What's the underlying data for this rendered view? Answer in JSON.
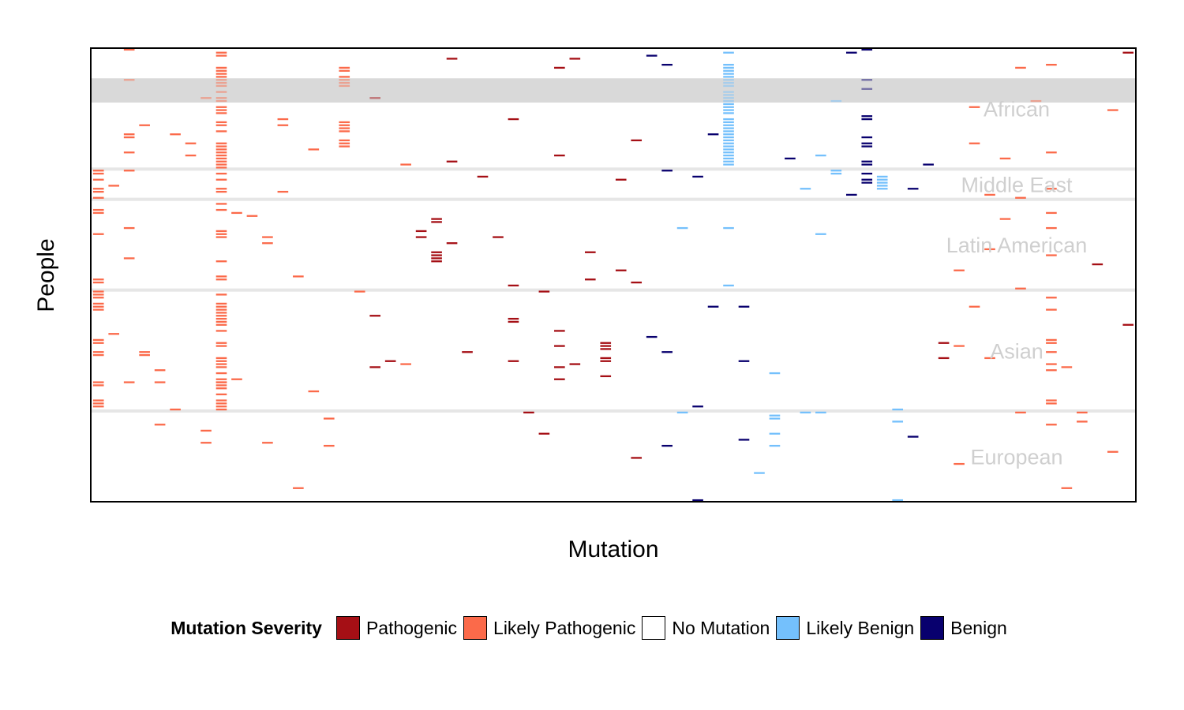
{
  "chart_data": {
    "type": "heatmap",
    "title": "",
    "xlabel": "Mutation",
    "ylabel": "People",
    "n_mutations": 68,
    "n_people": 150,
    "grid": false,
    "highlight_band_rows": [
      10,
      18
    ],
    "legend_title": "Mutation Severity",
    "legend_position": "bottom",
    "categories": [
      {
        "key": "P",
        "label": "Pathogenic",
        "color": "#A50F15"
      },
      {
        "key": "LP",
        "label": "Likely Pathogenic",
        "color": "#FB6A4A"
      },
      {
        "key": "N",
        "label": "No Mutation",
        "color": "#FFFFFF"
      },
      {
        "key": "LB",
        "label": "Likely Benign",
        "color": "#74C0FC"
      },
      {
        "key": "B",
        "label": "Benign",
        "color": "#08006E"
      }
    ],
    "groups": [
      {
        "name": "African",
        "row_start": 0,
        "row_end": 40
      },
      {
        "name": "Middle East",
        "row_start": 40,
        "row_end": 50
      },
      {
        "name": "Latin American",
        "row_start": 50,
        "row_end": 80
      },
      {
        "name": "Asian",
        "row_start": 80,
        "row_end": 120
      },
      {
        "name": "European",
        "row_start": 120,
        "row_end": 150
      }
    ],
    "cells": [
      {
        "col": 8,
        "rows": [
          1,
          2,
          6,
          7,
          8,
          9,
          10,
          11,
          12,
          14,
          16,
          17,
          19,
          20,
          21,
          24,
          25,
          27,
          31,
          32,
          33,
          34,
          35,
          36,
          37,
          38,
          39,
          41,
          43,
          46,
          47,
          51,
          53,
          60,
          61,
          62,
          70,
          75,
          76,
          81,
          84,
          85,
          86,
          87,
          88,
          89,
          90,
          91,
          93,
          97,
          98,
          102,
          103,
          104,
          105,
          107,
          109,
          110,
          110,
          111,
          112,
          114,
          116,
          117,
          118,
          119
        ],
        "sev": "LP"
      },
      {
        "col": 16,
        "rows": [
          6,
          7,
          9,
          10,
          11,
          12,
          24,
          25,
          26,
          27,
          30,
          31,
          32
        ],
        "sev": "LP"
      },
      {
        "col": 0,
        "rows": [
          40,
          41,
          43,
          46,
          47,
          49,
          53,
          54,
          61,
          76,
          77,
          80,
          81,
          82,
          84,
          85,
          86,
          96,
          97,
          100,
          101,
          110,
          111,
          116,
          117,
          118
        ],
        "sev": "LP"
      },
      {
        "col": 2,
        "rows": [
          0,
          10,
          28,
          29,
          34,
          40,
          59,
          69,
          110
        ],
        "sev": "LP"
      },
      {
        "col": 22,
        "rows": [
          56,
          57,
          67,
          68,
          69,
          70
        ],
        "sev": "P"
      },
      {
        "col": 33,
        "rows": [
          97,
          98,
          99,
          102,
          103,
          108
        ],
        "sev": "P"
      },
      {
        "col": 41,
        "rows": [
          1,
          5,
          6,
          7,
          8,
          9,
          10,
          11,
          12,
          14,
          15,
          16,
          17,
          18,
          19,
          20,
          21,
          23,
          24,
          25,
          26,
          27,
          28,
          29,
          30,
          31,
          32,
          33,
          34,
          35,
          36,
          37,
          38,
          59,
          78
        ],
        "sev": "LB"
      },
      {
        "col": 50,
        "rows": [
          0,
          10,
          13,
          22,
          23,
          29,
          31,
          32,
          37,
          38,
          41,
          43,
          44
        ],
        "sev": "B"
      },
      {
        "col": 48,
        "rows": [
          17,
          40,
          41
        ],
        "sev": "LB"
      },
      {
        "col": 51,
        "rows": [
          42,
          43,
          44,
          45,
          46
        ],
        "sev": "LB"
      },
      {
        "col": 62,
        "rows": [
          5,
          34,
          46,
          54,
          59,
          68,
          82,
          86,
          96,
          97,
          100,
          104,
          106,
          116,
          117,
          124
        ],
        "sev": "LP"
      },
      {
        "col": 60,
        "rows": [
          6,
          49,
          79,
          120
        ],
        "sev": "LP"
      },
      {
        "col": 30,
        "rows": [
          6,
          35,
          93,
          98,
          105,
          109
        ],
        "sev": "P"
      },
      {
        "col": 27,
        "rows": [
          23,
          78,
          89,
          90,
          103
        ],
        "sev": "P"
      },
      {
        "col": 44,
        "rows": [
          107,
          121,
          122,
          127,
          131
        ],
        "sev": "LB"
      },
      {
        "col": 37,
        "rows": [
          5,
          40,
          100,
          131
        ],
        "sev": "B"
      }
    ],
    "scattered_cells": [
      {
        "col": 1,
        "sev": "LP"
      },
      {
        "col": 3,
        "sev": "LP"
      },
      {
        "col": 4,
        "sev": "LP"
      },
      {
        "col": 5,
        "sev": "LP"
      },
      {
        "col": 6,
        "sev": "LP"
      },
      {
        "col": 7,
        "sev": "LP"
      },
      {
        "col": 9,
        "sev": "LP"
      },
      {
        "col": 10,
        "sev": "LP"
      },
      {
        "col": 11,
        "sev": "LP"
      },
      {
        "col": 12,
        "sev": "LP"
      },
      {
        "col": 13,
        "sev": "LP"
      },
      {
        "col": 14,
        "sev": "LP"
      },
      {
        "col": 15,
        "sev": "LP"
      },
      {
        "col": 17,
        "sev": "LP"
      },
      {
        "col": 18,
        "sev": "P"
      },
      {
        "col": 19,
        "sev": "P"
      },
      {
        "col": 20,
        "sev": "LP"
      },
      {
        "col": 21,
        "sev": "P"
      },
      {
        "col": 23,
        "sev": "P"
      },
      {
        "col": 24,
        "sev": "P"
      },
      {
        "col": 25,
        "sev": "P"
      },
      {
        "col": 26,
        "sev": "P"
      },
      {
        "col": 28,
        "sev": "P"
      },
      {
        "col": 29,
        "sev": "P"
      },
      {
        "col": 31,
        "sev": "P"
      },
      {
        "col": 32,
        "sev": "P"
      },
      {
        "col": 34,
        "sev": "P"
      },
      {
        "col": 35,
        "sev": "P"
      },
      {
        "col": 36,
        "sev": "B"
      },
      {
        "col": 38,
        "sev": "LB"
      },
      {
        "col": 39,
        "sev": "B"
      },
      {
        "col": 40,
        "sev": "B"
      },
      {
        "col": 42,
        "sev": "B"
      },
      {
        "col": 43,
        "sev": "LB"
      },
      {
        "col": 45,
        "sev": "B"
      },
      {
        "col": 46,
        "sev": "LB"
      },
      {
        "col": 47,
        "sev": "LB"
      },
      {
        "col": 49,
        "sev": "B"
      },
      {
        "col": 52,
        "sev": "LB"
      },
      {
        "col": 53,
        "sev": "B"
      },
      {
        "col": 54,
        "sev": "B"
      },
      {
        "col": 55,
        "sev": "P"
      },
      {
        "col": 56,
        "sev": "LP"
      },
      {
        "col": 57,
        "sev": "LP"
      },
      {
        "col": 58,
        "sev": "LP"
      },
      {
        "col": 59,
        "sev": "LP"
      },
      {
        "col": 61,
        "sev": "LP"
      },
      {
        "col": 63,
        "sev": "LP"
      },
      {
        "col": 64,
        "sev": "LP"
      },
      {
        "col": 65,
        "sev": "P"
      },
      {
        "col": 66,
        "sev": "LP"
      },
      {
        "col": 67,
        "sev": "P"
      }
    ]
  }
}
